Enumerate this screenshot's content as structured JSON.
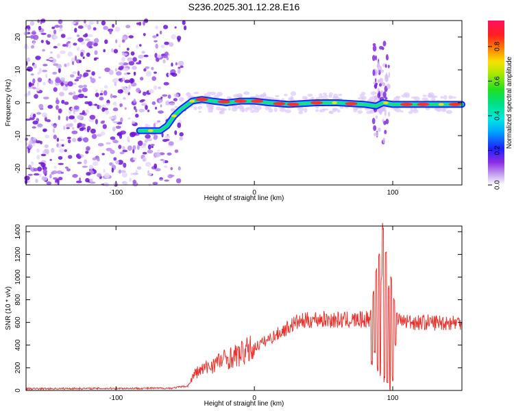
{
  "title": "S236.2025.301.12.28.E16",
  "chart_data": [
    {
      "type": "heatmap",
      "title": "S236.2025.301.12.28.E16",
      "xlabel": "Height of straight line (km)",
      "ylabel": "Frequency (Hz)",
      "xlim": [
        -165,
        150
      ],
      "ylim": [
        -25,
        25
      ],
      "xticks": [
        -100,
        0,
        100
      ],
      "yticks": [
        -20,
        -10,
        0,
        10,
        20
      ],
      "colorbar": {
        "label": "Normalized spectral amplitude",
        "range": [
          0,
          0.95
        ],
        "ticks": [
          0.0,
          0.2,
          0.4,
          0.6,
          0.8
        ],
        "tick_labels": [
          "0.0",
          "0.2",
          "0.4",
          "0.6",
          "0.8"
        ]
      },
      "ridge": [
        [
          -83,
          -8.5
        ],
        [
          -68,
          -8.5
        ],
        [
          -63,
          -7
        ],
        [
          -58,
          -4
        ],
        [
          -53,
          -2
        ],
        [
          -45,
          0.5
        ],
        [
          -38,
          1
        ],
        [
          -30,
          0.5
        ],
        [
          -20,
          0
        ],
        [
          -10,
          0.5
        ],
        [
          0,
          0.5
        ],
        [
          10,
          0
        ],
        [
          25,
          -0.5
        ],
        [
          45,
          0
        ],
        [
          60,
          0
        ],
        [
          80,
          -0.5
        ],
        [
          88,
          -1
        ],
        [
          93,
          0
        ],
        [
          100,
          -0.5
        ],
        [
          130,
          -0.5
        ],
        [
          150,
          -0.5
        ]
      ]
    },
    {
      "type": "line",
      "xlabel": "Height of straight line (km)",
      "ylabel": "SNR (10 * v/v)",
      "xlim": [
        -165,
        150
      ],
      "ylim": [
        0,
        1450
      ],
      "xticks": [
        -100,
        0,
        100
      ],
      "yticks": [
        0,
        200,
        400,
        600,
        800,
        1000,
        1200,
        1400
      ],
      "color": "#e8322c",
      "envelope": [
        [
          -165,
          15
        ],
        [
          -60,
          20
        ],
        [
          -48,
          40
        ],
        [
          -43,
          150
        ],
        [
          -35,
          200
        ],
        [
          -25,
          260
        ],
        [
          -10,
          320
        ],
        [
          0,
          380
        ],
        [
          10,
          450
        ],
        [
          20,
          520
        ],
        [
          30,
          600
        ],
        [
          45,
          630
        ],
        [
          60,
          620
        ],
        [
          75,
          620
        ],
        [
          85,
          630
        ],
        [
          92,
          600
        ],
        [
          100,
          620
        ],
        [
          120,
          600
        ],
        [
          150,
          600
        ]
      ],
      "spikes": [
        [
          84,
          700
        ],
        [
          85,
          250
        ],
        [
          86,
          850
        ],
        [
          87,
          350
        ],
        [
          88,
          1050
        ],
        [
          89,
          200
        ],
        [
          90,
          1180
        ],
        [
          91,
          150
        ],
        [
          92,
          1000
        ],
        [
          93,
          1450
        ],
        [
          94,
          100
        ],
        [
          95,
          1200
        ],
        [
          96,
          50
        ],
        [
          97,
          900
        ],
        [
          98,
          0
        ],
        [
          99,
          1000
        ],
        [
          100,
          100
        ],
        [
          101,
          800
        ],
        [
          102,
          400
        ],
        [
          103,
          700
        ]
      ]
    }
  ]
}
